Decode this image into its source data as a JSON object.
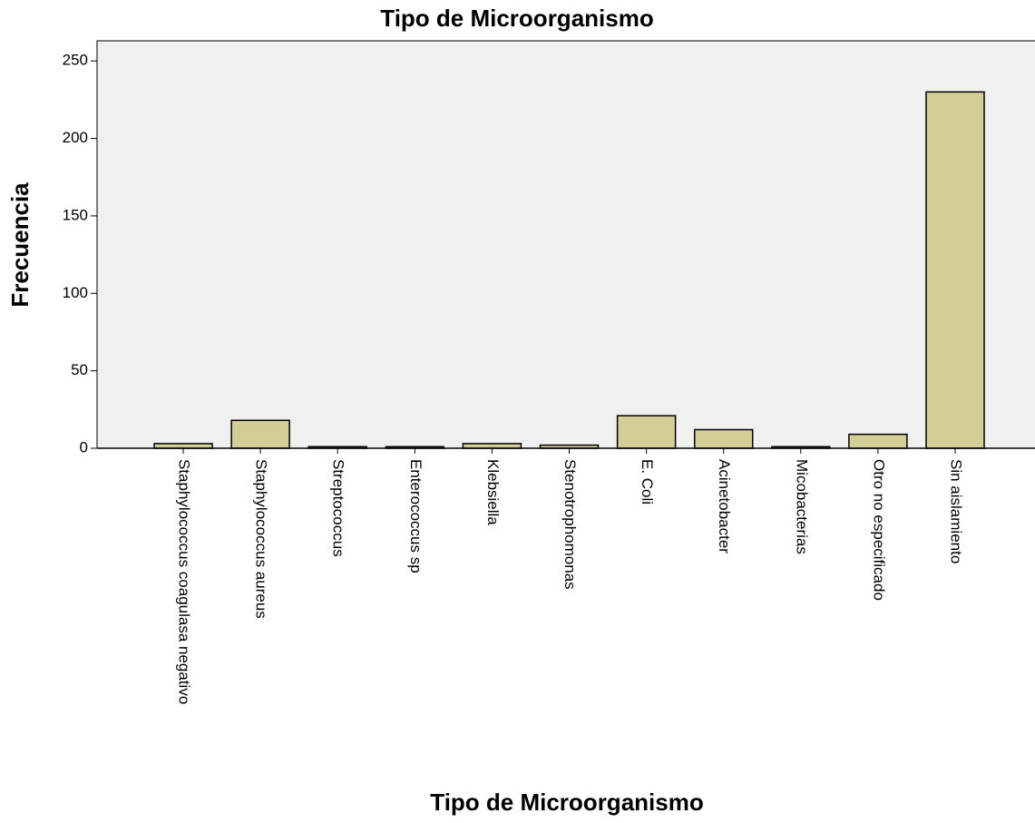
{
  "chart_data": {
    "type": "bar",
    "title": "Tipo de Microorganismo",
    "x_label": "Tipo de Microorganismo",
    "y_label": "Frecuencia",
    "categories": [
      "Staphylococcus coagulasa negativo",
      "Staphylococcus aureus",
      "Streptococcus",
      "Enterococcus sp",
      "Klebsiella",
      "Stenotrophomonas",
      "E. Coli",
      "Acinetobacter",
      "Micobacterias",
      "Otro no especificado",
      "Sin aislamiento"
    ],
    "values": [
      3,
      18,
      1,
      1,
      3,
      2,
      21,
      12,
      1,
      9,
      230
    ],
    "color": "#d3ce97",
    "ylim": [
      0,
      263
    ],
    "yticks": [
      0,
      50,
      100,
      150,
      200,
      250
    ],
    "grid": false
  }
}
